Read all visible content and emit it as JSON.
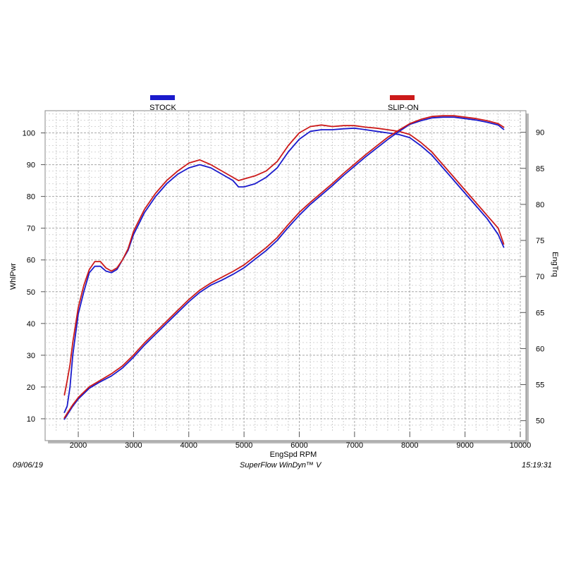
{
  "footer": {
    "date": "09/06/19",
    "software": "SuperFlow WinDyn™ V",
    "time": "15:19:31"
  },
  "chart_data": {
    "type": "line",
    "xlabel": "EngSpd  RPM",
    "ylabel_left": "WhlPwr",
    "ylabel_right": "EngTrq",
    "xlim": [
      1400,
      10000
    ],
    "ylim_left": [
      6,
      107
    ],
    "ylim_right": [
      48.5,
      93
    ],
    "x_ticks": [
      2000,
      3000,
      4000,
      5000,
      6000,
      7000,
      8000,
      9000,
      10000
    ],
    "y_ticks_left": [
      10,
      20,
      30,
      40,
      50,
      60,
      70,
      80,
      90,
      100
    ],
    "y_ticks_right": [
      50,
      55,
      60,
      65,
      70,
      75,
      80,
      85,
      90
    ],
    "grid": true,
    "legend": [
      {
        "name": "STOCK",
        "color": "#1a1acc"
      },
      {
        "name": "SLIP-ON",
        "color": "#cc1a1a"
      }
    ],
    "series": [
      {
        "name": "STOCK",
        "measure": "WhlPwr",
        "axis": "left",
        "color": "#1a1acc",
        "x": [
          1750,
          1800,
          1850,
          1900,
          2000,
          2100,
          2200,
          2300,
          2400,
          2500,
          2600,
          2700,
          2800,
          2900,
          3000,
          3200,
          3400,
          3600,
          3800,
          4000,
          4200,
          4400,
          4600,
          4800,
          4900,
          5000,
          5200,
          5400,
          5600,
          5800,
          6000,
          6200,
          6400,
          6600,
          6800,
          7000,
          7200,
          7400,
          7600,
          7800,
          8000,
          8200,
          8400,
          8600,
          8800,
          9000,
          9200,
          9400,
          9600,
          9700
        ],
        "y": [
          12,
          14,
          20,
          30,
          43,
          50,
          56,
          58,
          58,
          56.5,
          56,
          57,
          60,
          63,
          68,
          75,
          80,
          84,
          87,
          89,
          90,
          89,
          87,
          85,
          83,
          83,
          84,
          86,
          89,
          94,
          98,
          100.5,
          101,
          101,
          101.3,
          101.5,
          101,
          100.5,
          100,
          99.5,
          98.5,
          96,
          93,
          89,
          85,
          81,
          77,
          73,
          68,
          64
        ]
      },
      {
        "name": "SLIP-ON",
        "measure": "WhlPwr",
        "axis": "left",
        "color": "#cc1a1a",
        "x": [
          1750,
          1800,
          1850,
          1900,
          2000,
          2100,
          2200,
          2300,
          2400,
          2500,
          2600,
          2700,
          2800,
          2900,
          3000,
          3200,
          3400,
          3600,
          3800,
          4000,
          4200,
          4400,
          4600,
          4800,
          4900,
          5000,
          5200,
          5400,
          5600,
          5800,
          6000,
          6200,
          6400,
          6600,
          6800,
          7000,
          7200,
          7400,
          7600,
          7800,
          8000,
          8200,
          8400,
          8600,
          8800,
          9000,
          9200,
          9400,
          9600,
          9700
        ],
        "y": [
          17.5,
          22,
          27,
          34,
          45,
          52,
          57,
          59.5,
          59.5,
          57.5,
          56.5,
          57.5,
          60,
          63.5,
          69,
          76,
          81,
          85,
          88,
          90.5,
          91.5,
          90,
          88,
          86,
          85,
          85.5,
          86.5,
          88,
          91,
          96,
          100,
          102,
          102.5,
          102,
          102.3,
          102.3,
          101.8,
          101.5,
          101,
          100.5,
          99.5,
          97,
          94,
          90,
          86,
          82,
          78,
          74,
          70,
          65
        ]
      },
      {
        "name": "STOCK",
        "measure": "EngTrq",
        "axis": "right",
        "color": "#1a1acc",
        "x": [
          1750,
          1800,
          1900,
          2000,
          2200,
          2400,
          2600,
          2800,
          3000,
          3200,
          3400,
          3600,
          3800,
          4000,
          4200,
          4400,
          4600,
          4800,
          5000,
          5200,
          5400,
          5600,
          5800,
          6000,
          6200,
          6400,
          6600,
          6800,
          7000,
          7200,
          7400,
          7600,
          7800,
          8000,
          8200,
          8400,
          8600,
          8800,
          9000,
          9200,
          9400,
          9600,
          9700
        ],
        "y": [
          50.2,
          50.8,
          52,
          53,
          54.5,
          55.4,
          56.2,
          57.3,
          58.8,
          60.5,
          62,
          63.5,
          65,
          66.5,
          67.8,
          68.8,
          69.5,
          70.3,
          71.2,
          72.4,
          73.6,
          75,
          76.8,
          78.5,
          80,
          81.3,
          82.6,
          84,
          85.3,
          86.6,
          87.8,
          89,
          90.1,
          91.1,
          91.6,
          92,
          92.1,
          92.1,
          91.9,
          91.7,
          91.4,
          91,
          90.4
        ]
      },
      {
        "name": "SLIP-ON",
        "measure": "EngTrq",
        "axis": "right",
        "color": "#cc1a1a",
        "x": [
          1750,
          1800,
          1900,
          2000,
          2200,
          2400,
          2600,
          2800,
          3000,
          3200,
          3400,
          3600,
          3800,
          4000,
          4200,
          4400,
          4600,
          4800,
          5000,
          5200,
          5400,
          5600,
          5800,
          6000,
          6200,
          6400,
          6600,
          6800,
          7000,
          7200,
          7400,
          7600,
          7800,
          8000,
          8200,
          8400,
          8600,
          8800,
          9000,
          9200,
          9400,
          9600,
          9700
        ],
        "y": [
          50.4,
          51,
          52.2,
          53.2,
          54.7,
          55.6,
          56.5,
          57.6,
          59.1,
          60.8,
          62.3,
          63.8,
          65.3,
          66.8,
          68.1,
          69.1,
          69.9,
          70.7,
          71.6,
          72.8,
          74,
          75.4,
          77.2,
          78.9,
          80.3,
          81.6,
          82.9,
          84.3,
          85.6,
          86.9,
          88.1,
          89.3,
          90.3,
          91.2,
          91.8,
          92.2,
          92.3,
          92.3,
          92.1,
          91.9,
          91.6,
          91.2,
          90.7
        ]
      }
    ]
  }
}
